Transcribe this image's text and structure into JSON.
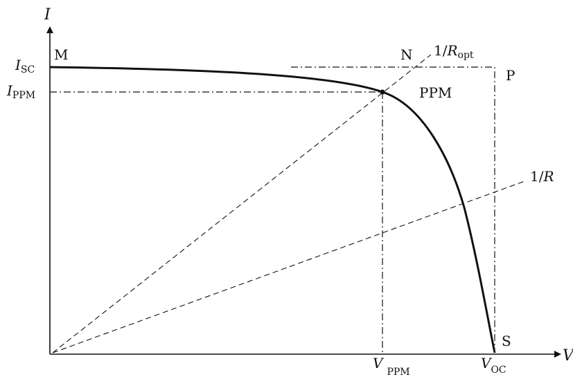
{
  "axes": {
    "y_label": "I",
    "x_label": "V"
  },
  "y_ticks": {
    "isc": {
      "main": "I",
      "sub": "SC"
    },
    "ippm": {
      "main": "I",
      "sub": "PPM"
    }
  },
  "x_ticks": {
    "vppm": {
      "main": "V",
      "sub": "PPM"
    },
    "voc": {
      "main": "V",
      "sub": "OC"
    }
  },
  "points": {
    "m": "M",
    "n": "N",
    "p": "P",
    "s": "S",
    "ppm": "PPM"
  },
  "lines": {
    "r_opt": {
      "main": "1/R",
      "sub": "opt"
    },
    "r": "1/R"
  },
  "colors": {
    "ink": "#111111",
    "background": "#ffffff"
  }
}
